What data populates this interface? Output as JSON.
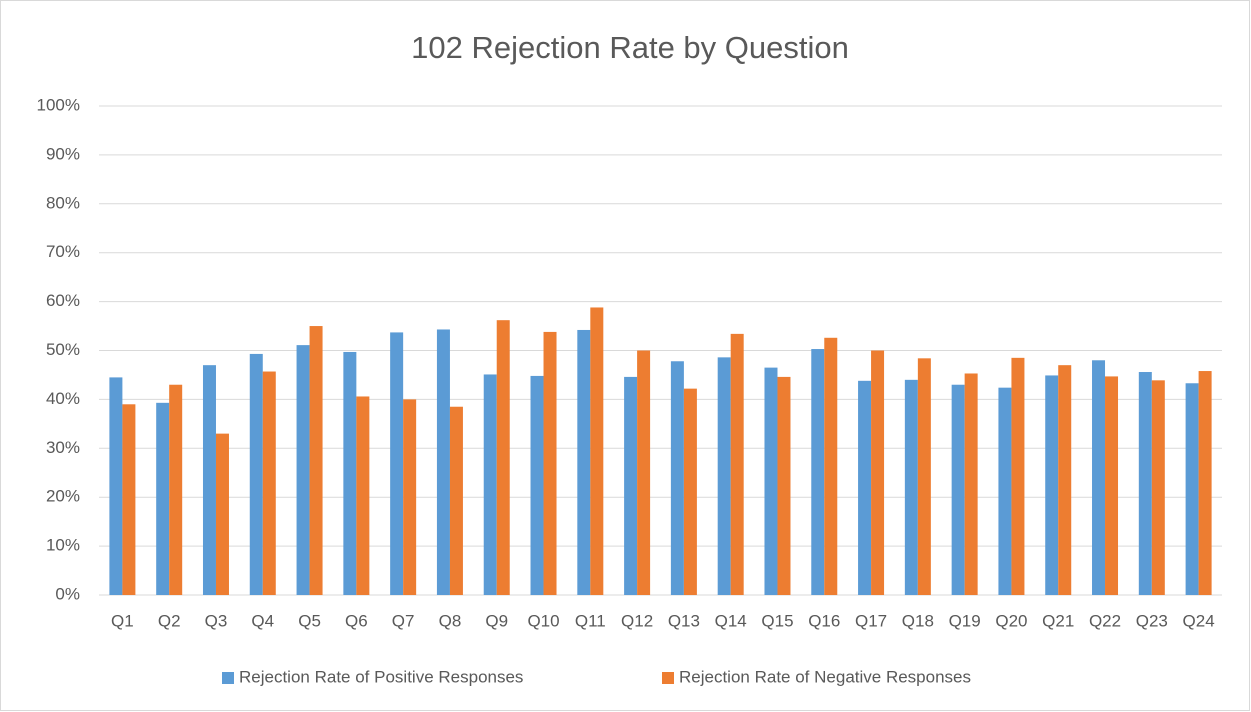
{
  "chart_data": {
    "type": "bar",
    "title": "102 Rejection Rate by Question",
    "categories": [
      "Q1",
      "Q2",
      "Q3",
      "Q4",
      "Q5",
      "Q6",
      "Q7",
      "Q8",
      "Q9",
      "Q10",
      "Q11",
      "Q12",
      "Q13",
      "Q14",
      "Q15",
      "Q16",
      "Q17",
      "Q18",
      "Q19",
      "Q20",
      "Q21",
      "Q22",
      "Q23",
      "Q24"
    ],
    "series": [
      {
        "name": "Rejection Rate of Positive Responses",
        "color": "#5b9bd5",
        "values": [
          44.5,
          39.3,
          47,
          49.3,
          51.1,
          49.7,
          53.7,
          54.3,
          45.1,
          44.8,
          54.2,
          44.6,
          47.8,
          48.6,
          46.5,
          50.3,
          43.8,
          44,
          43,
          42.4,
          44.9,
          48,
          45.6,
          43.3
        ]
      },
      {
        "name": "Rejection Rate of Negative Responses",
        "color": "#ed7d31",
        "values": [
          39,
          43,
          33,
          45.7,
          55,
          40.6,
          40,
          38.5,
          56.2,
          53.8,
          58.8,
          50,
          42.2,
          53.4,
          44.6,
          52.6,
          50,
          48.4,
          45.3,
          48.5,
          47,
          44.7,
          43.9,
          45.8
        ]
      }
    ],
    "ylim": [
      0,
      100
    ],
    "yticks": [
      {
        "value": 0,
        "label": "0%"
      },
      {
        "value": 10,
        "label": "10%"
      },
      {
        "value": 20,
        "label": "20%"
      },
      {
        "value": 30,
        "label": "30%"
      },
      {
        "value": 40,
        "label": "40%"
      },
      {
        "value": 50,
        "label": "50%"
      },
      {
        "value": 60,
        "label": "60%"
      },
      {
        "value": 70,
        "label": "70%"
      },
      {
        "value": 80,
        "label": "80%"
      },
      {
        "value": 90,
        "label": "90%"
      },
      {
        "value": 100,
        "label": "100%"
      }
    ],
    "grid": true,
    "legend": "bottom"
  }
}
